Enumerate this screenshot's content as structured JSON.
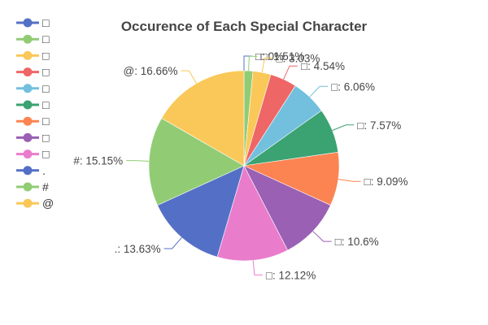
{
  "chart_data": {
    "type": "pie",
    "title": "Occurence of Each Special Character",
    "legend_position": "top-left",
    "categories": [
      "□",
      "□",
      "□",
      "□",
      "□",
      "□",
      "□",
      "□",
      "□",
      ".",
      "#",
      "@"
    ],
    "values": [
      0,
      1.51,
      3.03,
      4.54,
      6.06,
      7.57,
      9.09,
      10.6,
      12.12,
      13.63,
      15.15,
      16.66
    ],
    "data_labels": [
      "□: 0%",
      "□: 1.51%",
      "□: 3.03%",
      "□: 4.54%",
      "□: 6.06%",
      "□: 7.57%",
      "□: 9.09%",
      "□: 10.6%",
      "□: 12.12%",
      ".: 13.63%",
      "#: 15.15%",
      "@: 16.66%"
    ],
    "colors": [
      "#5470c6",
      "#91cc75",
      "#fac858",
      "#ee6666",
      "#73c0de",
      "#3ba272",
      "#fc8452",
      "#9a60b4",
      "#ea7ccc",
      "#5470c6",
      "#91cc75",
      "#fac858"
    ]
  }
}
